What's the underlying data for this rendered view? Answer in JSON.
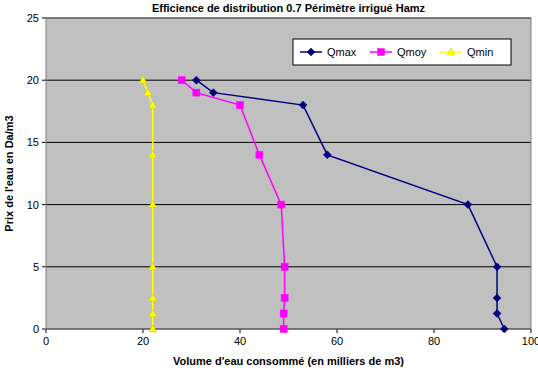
{
  "chart_data": {
    "type": "line",
    "title": "Efficience de distribution 0.7 Périmètre irrigué Hamz",
    "x_label": "Volume d'eau consommé (en milliers de m3)",
    "y_label": "Prix de l'eau en Da/m3",
    "xlim": [
      0,
      100
    ],
    "xticks": [
      0,
      20,
      40,
      60,
      80,
      100
    ],
    "ylim": [
      0,
      25
    ],
    "yticks": [
      0,
      5,
      10,
      15,
      20,
      25
    ],
    "grid": true,
    "legend": "top-right",
    "series": [
      {
        "name": "Qmax",
        "color": "#000080",
        "marker": "diamond",
        "line_style": "solid",
        "x": [
          94.5,
          93,
          93,
          93,
          87,
          58,
          53,
          34.5,
          31
        ],
        "values": [
          0,
          1.25,
          2.5,
          5,
          10,
          14,
          18,
          19,
          20
        ]
      },
      {
        "name": "Qmoy",
        "color": "#ff00ff",
        "marker": "square",
        "line_style": "solid",
        "x": [
          49,
          49,
          49.2,
          49.2,
          48.5,
          44,
          40,
          31,
          28
        ],
        "values": [
          0,
          1.25,
          2.5,
          5,
          10,
          14,
          18,
          19,
          20
        ]
      },
      {
        "name": "Qmin",
        "color": "#ffff00",
        "marker": "triangle",
        "line_style": "solid",
        "x": [
          22,
          22,
          22,
          22,
          22,
          22,
          22,
          21,
          20
        ],
        "values": [
          0,
          1.25,
          2.5,
          5,
          10,
          14,
          18,
          19,
          20
        ]
      }
    ]
  }
}
